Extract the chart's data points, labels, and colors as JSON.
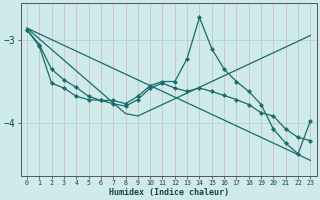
{
  "xlabel": "Humidex (Indice chaleur)",
  "bg_color": "#ceeaea",
  "line_color": "#1a6b6b",
  "grid_color": "#aed0d0",
  "axis_color": "#555555",
  "tick_color": "#1a4444",
  "xlim": [
    -0.5,
    23.5
  ],
  "ylim": [
    -4.65,
    -2.55
  ],
  "yticks": [
    -4,
    -3
  ],
  "xticks": [
    0,
    1,
    2,
    3,
    4,
    5,
    6,
    7,
    8,
    9,
    10,
    11,
    12,
    13,
    14,
    15,
    16,
    17,
    18,
    19,
    20,
    21,
    22,
    23
  ],
  "line1_y": [
    -2.85,
    -2.92,
    -2.99,
    -3.06,
    -3.13,
    -3.2,
    -3.27,
    -3.34,
    -3.41,
    -3.48,
    -3.55,
    -3.62,
    -3.69,
    -3.76,
    -3.83,
    -3.9,
    -3.97,
    -4.04,
    -4.11,
    -4.18,
    -4.25,
    -4.32,
    -4.39,
    -4.46
  ],
  "line2_y": [
    -2.85,
    -2.98,
    -3.11,
    -3.24,
    -3.37,
    -3.5,
    -3.63,
    -3.76,
    -3.89,
    -3.92,
    -3.85,
    -3.78,
    -3.71,
    -3.64,
    -3.57,
    -3.5,
    -3.43,
    -3.36,
    -3.29,
    -3.22,
    -3.15,
    -3.08,
    -3.01,
    -2.94
  ],
  "line3_y": [
    -2.87,
    -3.05,
    -3.35,
    -3.48,
    -3.57,
    -3.68,
    -3.73,
    -3.73,
    -3.77,
    -3.68,
    -3.55,
    -3.5,
    -3.5,
    -3.22,
    -2.72,
    -3.1,
    -3.35,
    -3.5,
    -3.62,
    -3.78,
    -4.08,
    -4.25,
    -4.38,
    -3.98
  ],
  "line4_y": [
    -2.87,
    -3.07,
    -3.52,
    -3.58,
    -3.68,
    -3.72,
    -3.73,
    -3.77,
    -3.8,
    -3.72,
    -3.58,
    -3.52,
    -3.58,
    -3.62,
    -3.58,
    -3.62,
    -3.67,
    -3.72,
    -3.78,
    -3.88,
    -3.92,
    -4.08,
    -4.18,
    -4.22
  ]
}
